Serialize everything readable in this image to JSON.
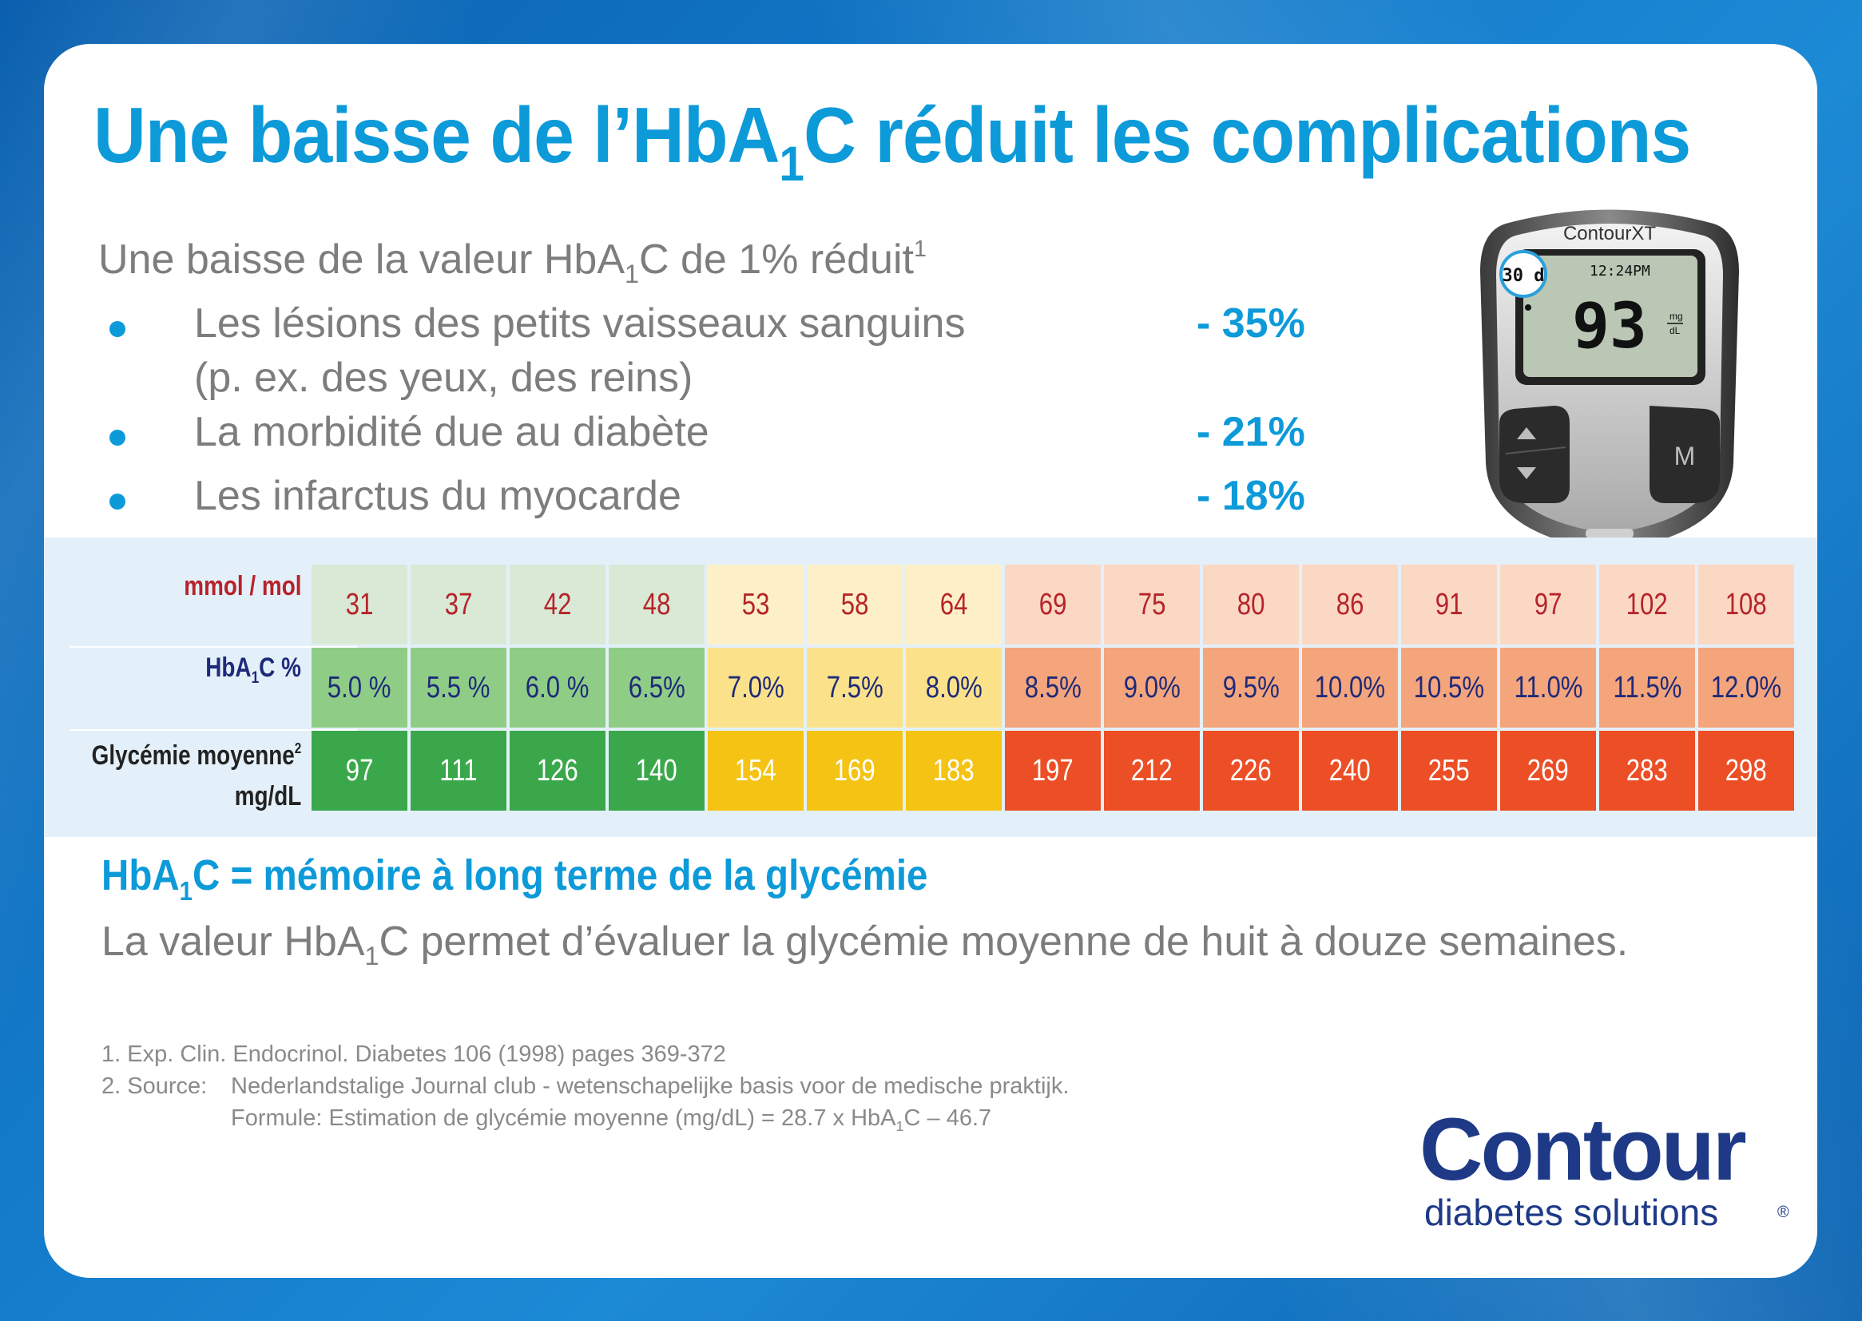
{
  "title": {
    "part1": "Une baisse de l’HbA",
    "sub": "1",
    "part2": "C réduit les complications"
  },
  "intro": {
    "part1": "Une baisse de la valeur HbA",
    "sub": "1",
    "part2": "C de 1% réduit",
    "sup": "1"
  },
  "benefits": [
    {
      "text": "Les lésions des petits vaisseaux sanguins",
      "text2": "(p. ex. des yeux, des reins)",
      "pct": "- 35%"
    },
    {
      "text": "La morbidité due au diabète",
      "pct": "- 21%"
    },
    {
      "text": "Les infarctus du myocarde",
      "pct": "- 18%"
    }
  ],
  "meter": {
    "brand": "ContourXT",
    "badge": "30 d",
    "time": "12:24PM",
    "reading": "93",
    "unit_top": "mg",
    "unit_bottom": "dL",
    "button_m": "M"
  },
  "table": {
    "labels": {
      "mmol": "mmol / mol",
      "hba_part1": "HbA",
      "hba_sub": "1",
      "hba_part2": "C %",
      "gly_line1": "Glycémie moyenne",
      "gly_sup": "2",
      "gly_line2": "mg/dL"
    },
    "mmol": [
      "31",
      "37",
      "42",
      "48",
      "53",
      "58",
      "64",
      "69",
      "75",
      "80",
      "86",
      "91",
      "97",
      "102",
      "108"
    ],
    "hba1c": [
      "5.0 %",
      "5.5 %",
      "6.0 %",
      "6.5%",
      "7.0%",
      "7.5%",
      "8.0%",
      "8.5%",
      "9.0%",
      "9.5%",
      "10.0%",
      "10.5%",
      "11.0%",
      "11.5%",
      "12.0%"
    ],
    "glycemia": [
      "97",
      "111",
      "126",
      "140",
      "154",
      "169",
      "183",
      "197",
      "212",
      "226",
      "240",
      "255",
      "269",
      "283",
      "298"
    ],
    "zones": [
      "green",
      "green",
      "green",
      "green",
      "yellow",
      "yellow",
      "yellow",
      "red",
      "red",
      "red",
      "red",
      "red",
      "red",
      "red",
      "red"
    ],
    "colors": {
      "green": {
        "light": "#d9e9d6",
        "mid": "#8fcd86",
        "dark": "#3aa84a"
      },
      "yellow": {
        "light": "#fdf0c8",
        "mid": "#fbe28a",
        "dark": "#f4c313"
      },
      "red": {
        "light": "#fbd8c4",
        "mid": "#f4a57b",
        "dark": "#ec4e25"
      }
    }
  },
  "memory": {
    "title_part1": "HbA",
    "title_sub": "1",
    "title_part2": "C = mémoire à long terme de la glycémie",
    "text_part1": "La valeur HbA",
    "text_sub": "1",
    "text_part2": "C permet d’évaluer la glycémie moyenne de huit à douze semaines."
  },
  "references": {
    "ref1": "1. Exp. Clin. Endocrinol. Diabetes 106 (1998) pages 369-372",
    "ref2_num": "2. Source:",
    "ref2_text": "Nederlandstalige Journal club - wetenschapelijke basis voor de medische praktijk.",
    "ref3_part1": "Formule: Estimation de glycémie moyenne (mg/dL) = 28.7 x HbA",
    "ref3_sub": "1",
    "ref3_part2": "C – 46.7"
  },
  "logo": {
    "main": "Contour",
    "reg": "®",
    "sub": "diabetes solutions"
  }
}
